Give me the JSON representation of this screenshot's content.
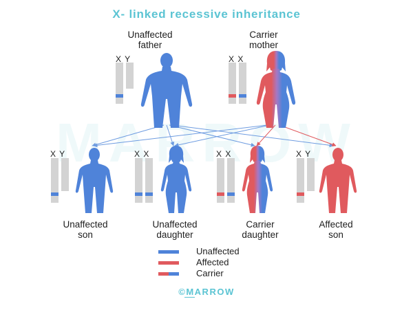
{
  "title": "X- linked recessive inheritance",
  "watermark": "MARROW",
  "brand": "©MARROW",
  "colors": {
    "unaffected": "#4f83d9",
    "affected": "#e05a5e",
    "chromosome": "#d3d3d3",
    "arrow": "#6d9be0",
    "accent": "#5bc4d3"
  },
  "parents": {
    "father": {
      "label": "Unaffected\nfather",
      "chromosomes": "X Y",
      "status": "unaffected",
      "icon": "male-figure-icon"
    },
    "mother": {
      "label": "Carrier\nmother",
      "chromosomes": "X X",
      "status": "carrier",
      "icon": "female-figure-icon"
    }
  },
  "children": [
    {
      "label": "Unaffected\nson",
      "chromosomes": "X Y",
      "status": "unaffected",
      "icon": "male-figure-icon"
    },
    {
      "label": "Unaffected\ndaughter",
      "chromosomes": "X X",
      "status": "unaffected",
      "icon": "female-figure-icon"
    },
    {
      "label": "Carrier\ndaughter",
      "chromosomes": "X X",
      "status": "carrier",
      "icon": "female-figure-icon"
    },
    {
      "label": "Affected\nson",
      "chromosomes": "X Y",
      "status": "affected",
      "icon": "male-figure-icon"
    }
  ],
  "legend": [
    {
      "label": "Unaffected",
      "swatch": "unaffected"
    },
    {
      "label": "Affected",
      "swatch": "affected"
    },
    {
      "label": "Carrier",
      "swatch": "carrier"
    }
  ]
}
